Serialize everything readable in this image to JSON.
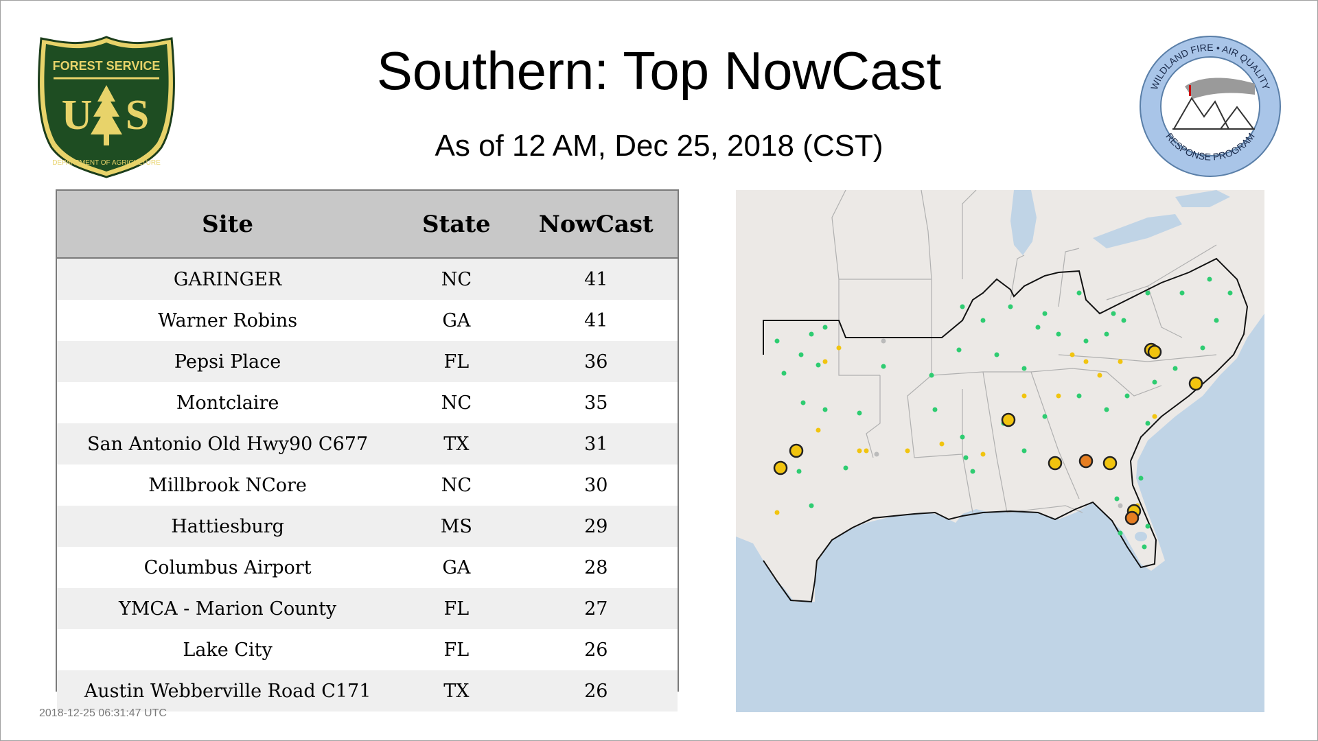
{
  "header": {
    "title": "Southern: Top NowCast",
    "subtitle": "As of 12 AM, Dec 25, 2018 (CST)"
  },
  "logos": {
    "left": {
      "icon": "usfs-shield-logo",
      "text_top": "FOREST SERVICE",
      "text_mid": "US",
      "text_bottom": "DEPARTMENT OF AGRICULTURE"
    },
    "right": {
      "icon": "wildland-fire-air-quality-logo",
      "text_top": "WILDLAND FIRE • AIR QUALITY",
      "text_bottom": "RESPONSE PROGRAM"
    }
  },
  "table": {
    "columns": [
      "Site",
      "State",
      "NowCast"
    ],
    "rows": [
      [
        "GARINGER",
        "NC",
        "41"
      ],
      [
        "Warner Robins",
        "GA",
        "41"
      ],
      [
        "Pepsi Place",
        "FL",
        "36"
      ],
      [
        "Montclaire",
        "NC",
        "35"
      ],
      [
        "San Antonio Old Hwy90 C677",
        "TX",
        "31"
      ],
      [
        "Millbrook NCore",
        "NC",
        "30"
      ],
      [
        "Hattiesburg",
        "MS",
        "29"
      ],
      [
        "Columbus Airport",
        "GA",
        "28"
      ],
      [
        "YMCA - Marion County",
        "FL",
        "27"
      ],
      [
        "Lake City",
        "FL",
        "26"
      ],
      [
        "Austin Webberville Road C171",
        "TX",
        "26"
      ]
    ]
  },
  "footer": {
    "timestamp": "2018-12-25 06:31:47 UTC"
  },
  "map": {
    "colors": {
      "land": "#ece9e6",
      "water": "#c0d4e6",
      "boundary": "#b0b0b0",
      "region": "#111111",
      "good": "#2ecc71",
      "moderate": "#f1c40f",
      "usg": "#e67e22",
      "nodata": "#bbbbbb"
    }
  }
}
